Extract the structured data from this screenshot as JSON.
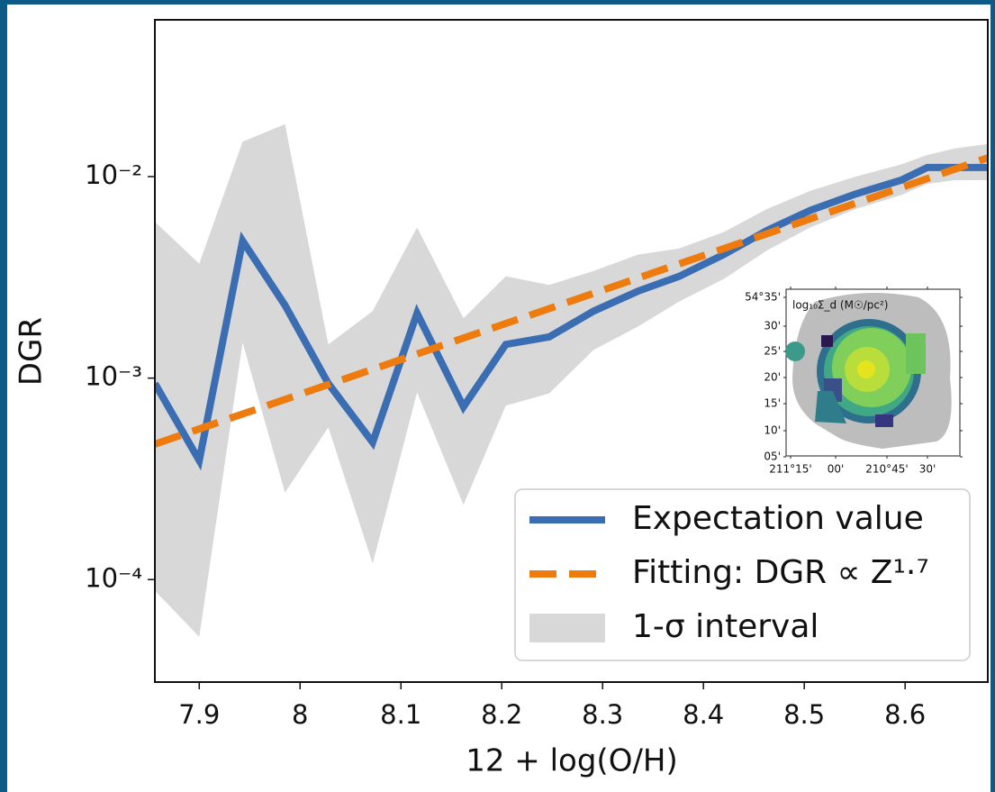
{
  "chart_data": {
    "type": "line",
    "xlabel": "12 + log(O/H)",
    "ylabel": "DGR",
    "xlim": [
      7.856,
      8.682
    ],
    "xticks": [
      7.9,
      8.0,
      8.1,
      8.2,
      8.3,
      8.4,
      8.5,
      8.6
    ],
    "ylim": [
      3.1e-05,
      0.06
    ],
    "log_y": true,
    "yticks": [
      {
        "value": 0.0001,
        "label": "10⁻⁴"
      },
      {
        "value": 0.001,
        "label": "10⁻³"
      },
      {
        "value": 0.01,
        "label": "10⁻²"
      }
    ],
    "legend": "lower right",
    "grid": false,
    "series": [
      {
        "name": "Expectation value",
        "color": "#3b6db3",
        "style": "solid",
        "x": [
          7.856,
          7.9,
          7.943,
          7.985,
          8.028,
          8.072,
          8.116,
          8.162,
          8.204,
          8.247,
          8.291,
          8.335,
          8.376,
          8.42,
          8.463,
          8.506,
          8.551,
          8.596,
          8.622,
          8.649,
          8.682
        ],
        "values": [
          0.00094,
          0.00039,
          0.0048,
          0.0023,
          0.00094,
          0.00048,
          0.0021,
          0.00072,
          0.00147,
          0.0016,
          0.00215,
          0.0027,
          0.0032,
          0.0041,
          0.0054,
          0.0068,
          0.0082,
          0.0096,
          0.0111,
          0.0111,
          0.0111
        ]
      },
      {
        "name": "Fitting: DGR ∝ Z¹·⁷",
        "color": "#ee7b0e",
        "style": "dashed",
        "x": [
          7.856,
          8.682
        ],
        "values": [
          0.00047,
          0.0124
        ]
      },
      {
        "name": "1-σ interval",
        "color": "#d8d8d8",
        "style": "band",
        "x": [
          7.856,
          7.9,
          7.943,
          7.985,
          8.028,
          8.072,
          8.116,
          8.162,
          8.204,
          8.247,
          8.291,
          8.335,
          8.376,
          8.42,
          8.463,
          8.506,
          8.551,
          8.596,
          8.622,
          8.649,
          8.682
        ],
        "upper": [
          0.00597,
          0.0037,
          0.0149,
          0.0182,
          0.00147,
          0.00215,
          0.0056,
          0.00198,
          0.0032,
          0.0029,
          0.0034,
          0.0041,
          0.0044,
          0.0053,
          0.0069,
          0.0085,
          0.01,
          0.0115,
          0.0128,
          0.0138,
          0.0145
        ],
        "lower": [
          8.8e-05,
          5.2e-05,
          0.0015,
          0.00027,
          0.00057,
          0.00012,
          0.00085,
          0.000235,
          0.00073,
          0.00084,
          0.00138,
          0.0018,
          0.0024,
          0.0031,
          0.0043,
          0.0056,
          0.0069,
          0.0081,
          0.0092,
          0.0096,
          0.0096
        ]
      }
    ]
  },
  "inset": {
    "title": "log₁₀Σ_d (M☉/pc²)",
    "yticks": [
      "54°35'",
      "30'",
      "25'",
      "20'",
      "15'",
      "10'",
      "05'"
    ],
    "xticks": [
      "211°15'",
      "00'",
      "210°45'",
      "30'"
    ]
  }
}
